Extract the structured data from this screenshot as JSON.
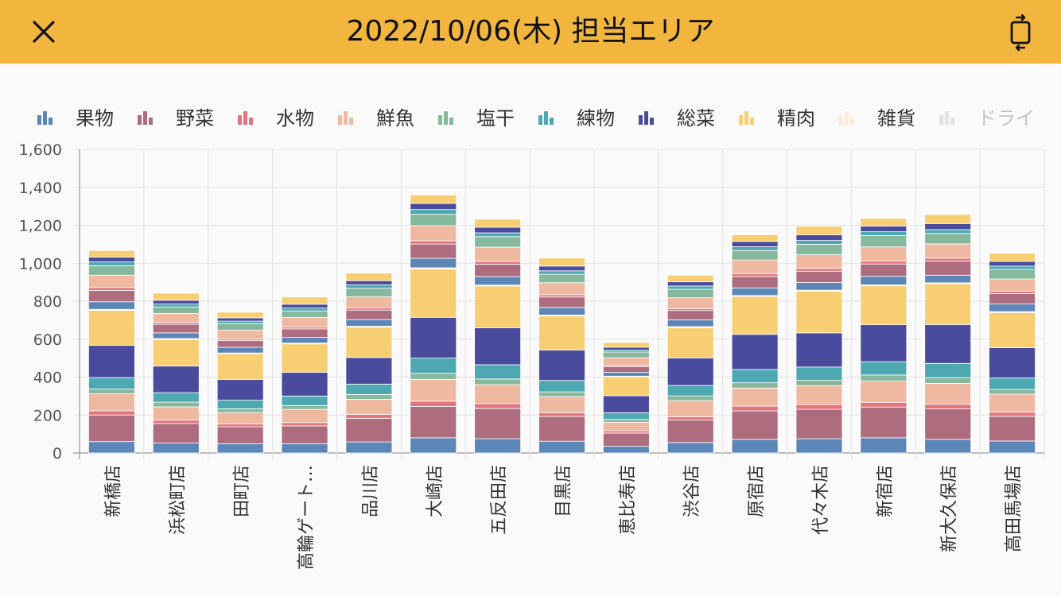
{
  "header": {
    "title": "2022/10/06(木) 担当エリア",
    "close_icon": "close-icon",
    "rotate_icon": "rotate-screen-icon",
    "background": "#f2b63f"
  },
  "chart_data": {
    "type": "bar",
    "stacked": true,
    "title": "",
    "xlabel": "",
    "ylabel": "",
    "ylim": [
      0,
      1600
    ],
    "yticks": [
      "0",
      "200",
      "400",
      "600",
      "800",
      "1,000",
      "1,200",
      "1,400",
      "1,600"
    ],
    "grid": true,
    "legend_position": "top",
    "categories": [
      "新橋店",
      "浜松町店",
      "田町店",
      "高輪ゲート…",
      "品川店",
      "大崎店",
      "五反田店",
      "目黒店",
      "恵比寿店",
      "渋谷店",
      "原宿店",
      "代々木店",
      "新宿店",
      "新大久保店",
      "高田馬場店"
    ],
    "series": [
      {
        "name": "果物",
        "color": "#5b86b7",
        "values": [
          60,
          52,
          48,
          48,
          58,
          80,
          75,
          62,
          35,
          55,
          72,
          75,
          80,
          72,
          63
        ]
      },
      {
        "name": "野菜",
        "color": "#ad6d7e",
        "values": [
          140,
          103,
          90,
          95,
          125,
          165,
          160,
          130,
          70,
          118,
          150,
          155,
          162,
          160,
          130
        ]
      },
      {
        "name": "水物",
        "color": "#e0767e",
        "values": [
          22,
          18,
          15,
          17,
          20,
          28,
          25,
          20,
          12,
          18,
          25,
          25,
          25,
          25,
          22
        ]
      },
      {
        "name": "鮮魚",
        "color": "#efb8a0",
        "values": [
          90,
          70,
          60,
          70,
          80,
          115,
          100,
          85,
          45,
          85,
          95,
          100,
          112,
          110,
          95
        ]
      },
      {
        "name": "塩干",
        "color": "#86b89e",
        "values": [
          25,
          25,
          20,
          20,
          25,
          32,
          30,
          25,
          15,
          25,
          28,
          28,
          32,
          30,
          25
        ]
      },
      {
        "name": "練物",
        "color": "#4da8b2",
        "values": [
          60,
          50,
          45,
          50,
          55,
          80,
          75,
          60,
          35,
          55,
          70,
          70,
          70,
          75,
          60
        ]
      },
      {
        "name": "総菜",
        "color": "#4b4b9e",
        "values": [
          170,
          140,
          110,
          125,
          140,
          215,
          195,
          160,
          90,
          145,
          185,
          180,
          195,
          205,
          160
        ]
      },
      {
        "name": "精肉",
        "color": "#f7cf72",
        "values": [
          185,
          140,
          135,
          150,
          160,
          255,
          220,
          180,
          100,
          160,
          200,
          220,
          205,
          215,
          185
        ]
      },
      {
        "name": "雑貨",
        "color": "#fcebd8",
        "values": [
          5,
          5,
          4,
          4,
          5,
          6,
          5,
          5,
          3,
          5,
          5,
          5,
          5,
          5,
          5
        ]
      },
      {
        "name": "ドライ",
        "color": "#cfcfcf",
        "values": [
          0,
          0,
          0,
          0,
          0,
          0,
          0,
          0,
          0,
          0,
          0,
          0,
          0,
          0,
          0
        ]
      },
      {
        "name": "",
        "color": "#5b86b7",
        "values": [
          40,
          30,
          30,
          30,
          35,
          50,
          45,
          40,
          20,
          35,
          40,
          40,
          45,
          40,
          40
        ]
      },
      {
        "name": "",
        "color": "#ad6d7e",
        "values": [
          60,
          45,
          35,
          45,
          50,
          75,
          65,
          55,
          30,
          50,
          60,
          60,
          65,
          75,
          55
        ]
      },
      {
        "name": "",
        "color": "#e0767e",
        "values": [
          15,
          10,
          8,
          10,
          12,
          17,
          15,
          12,
          7,
          10,
          15,
          15,
          15,
          15,
          12
        ]
      },
      {
        "name": "",
        "color": "#efb8a0",
        "values": [
          65,
          47,
          47,
          50,
          58,
          80,
          75,
          63,
          40,
          57,
          72,
          72,
          75,
          75,
          65
        ]
      },
      {
        "name": "",
        "color": "#86b89e",
        "values": [
          50,
          35,
          35,
          35,
          45,
          60,
          55,
          45,
          30,
          45,
          50,
          55,
          60,
          55,
          50
        ]
      },
      {
        "name": "",
        "color": "#4da8b2",
        "values": [
          20,
          15,
          13,
          15,
          18,
          25,
          20,
          18,
          10,
          17,
          20,
          20,
          20,
          20,
          18
        ]
      },
      {
        "name": "",
        "color": "#4b4b9e",
        "values": [
          25,
          20,
          17,
          20,
          22,
          32,
          30,
          25,
          15,
          22,
          28,
          30,
          30,
          32,
          25
        ]
      },
      {
        "name": "",
        "color": "#f7cf72",
        "values": [
          35,
          37,
          30,
          38,
          40,
          45,
          42,
          42,
          25,
          35,
          35,
          45,
          40,
          48,
          43
        ]
      }
    ]
  },
  "legend": {
    "items": [
      {
        "name": "果物",
        "color": "#5b86b7"
      },
      {
        "name": "野菜",
        "color": "#ad6d7e"
      },
      {
        "name": "水物",
        "color": "#e0767e"
      },
      {
        "name": "鮮魚",
        "color": "#efb8a0"
      },
      {
        "name": "塩干",
        "color": "#86b89e"
      },
      {
        "name": "練物",
        "color": "#4da8b2"
      },
      {
        "name": "総菜",
        "color": "#4b4b9e"
      },
      {
        "name": "精肉",
        "color": "#f7cf72"
      },
      {
        "name": "雑貨",
        "color": "#fcebd8"
      },
      {
        "name": "ドライ",
        "color": "#cfcfcf",
        "disabled": true
      }
    ]
  }
}
